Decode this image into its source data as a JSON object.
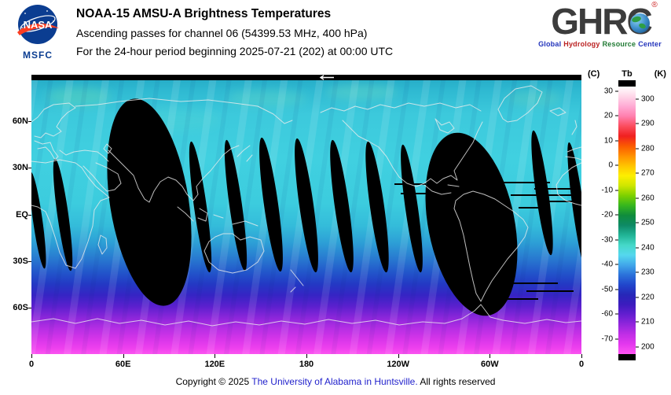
{
  "header": {
    "nasa_logo": {
      "text": "NASA",
      "msfc": "MSFC"
    },
    "title": "NOAA-15 AMSU-A Brightness Temperatures",
    "subtitle": "Ascending passes for channel 06 (54399.53 MHz, 400 hPa)",
    "period": "For the 24-hour period beginning 2025-07-21 (202) at 00:00 UTC",
    "ghrc_logo": {
      "acronym": "GHRC",
      "reg_mark": "®",
      "tagline_words": [
        {
          "text": "Global",
          "color": "#2233bb"
        },
        {
          "text": "Hydrology",
          "color": "#bb2222"
        },
        {
          "text": "Resource",
          "color": "#1f7a33"
        },
        {
          "text": "Center",
          "color": "#2233bb"
        }
      ]
    }
  },
  "map": {
    "x_ticks": [
      "0",
      "60E",
      "120E",
      "180",
      "120W",
      "60W",
      "0"
    ],
    "y_ticks": [
      "60N",
      "30N",
      "EQ",
      "30S",
      "60S"
    ],
    "swath_direction_arrow": "←"
  },
  "colorbar": {
    "unit_c": "(C)",
    "unit_label": "Tb",
    "unit_k": "(K)",
    "k_ticks": [
      300,
      290,
      280,
      270,
      260,
      250,
      240,
      230,
      220,
      210,
      200
    ],
    "c_ticks": [
      30,
      20,
      10,
      0,
      -10,
      -20,
      -30,
      -40,
      -50,
      -60,
      -70
    ],
    "gradient": [
      "#ffffff",
      "#ffd6e8",
      "#ffaad4",
      "#ff7fae",
      "#fb4d5e",
      "#f02020",
      "#fb5a00",
      "#ff9000",
      "#ffc400",
      "#fdef00",
      "#cfe600",
      "#7ed000",
      "#36b61e",
      "#0f8c3c",
      "#0e8a66",
      "#21b496",
      "#45d8c8",
      "#55d8ee",
      "#41a8ea",
      "#2b72da",
      "#2146cc",
      "#2627b8",
      "#3c1cbe",
      "#641ed0",
      "#9226dc",
      "#c02ee6",
      "#e438ee",
      "#ff55f2"
    ]
  },
  "footer": {
    "prefix": "Copyright © 2025 ",
    "link": "The University of Alabama in Huntsville.",
    "suffix": " All rights reserved",
    "link_color": "#2222cc"
  },
  "chart_data": {
    "type": "heatmap",
    "title": "NOAA-15 AMSU-A Brightness Temperatures",
    "subtitle": "Ascending passes for channel 06 (54399.53 MHz, 400 hPa)",
    "period": "For the 24-hour period beginning 2025-07-21 (202) at 00:00 UTC",
    "projection": "equirectangular world map, 0° longitude at both edges",
    "x_axis": {
      "ticks": [
        "0",
        "60E",
        "120E",
        "180",
        "120W",
        "60W",
        "0"
      ],
      "range": "0 to 360 degrees longitude"
    },
    "y_axis": {
      "ticks": [
        "60N",
        "30N",
        "EQ",
        "30S",
        "60S"
      ],
      "range": "90N to 90S latitude"
    },
    "colorbar": {
      "quantity": "Tb",
      "units": [
        "C",
        "K"
      ],
      "ticks_k": [
        300,
        290,
        280,
        270,
        260,
        250,
        240,
        230,
        220,
        210,
        200
      ],
      "ticks_c": [
        30,
        20,
        10,
        0,
        -10,
        -20,
        -30,
        -40,
        -50,
        -60,
        -70
      ],
      "range_k": [
        200,
        300
      ],
      "legend_position": "right"
    },
    "approx_field_by_latitude_k": [
      {
        "lat_band": "60N-90N",
        "tb_k": 238
      },
      {
        "lat_band": "30N-60N",
        "tb_k": 242
      },
      {
        "lat_band": "EQ-30N",
        "tb_k": 243
      },
      {
        "lat_band": "30S-EQ",
        "tb_k": 242
      },
      {
        "lat_band": "60S-30S",
        "tb_k": 225
      },
      {
        "lat_band": "90S-60S",
        "tb_k": 206
      }
    ],
    "no_data_regions": "black gaps between ascending orbit swaths: two wide lens-shaped gaps (centered near 75E and 70W) plus ~10 narrow slivers spaced about every 23 degrees of longitude near the equator; black strip along top (pole) edge; short black dropout dashes east of the 70W gap",
    "grid": false,
    "coastlines": "light gray/white continent outlines overlaid"
  }
}
